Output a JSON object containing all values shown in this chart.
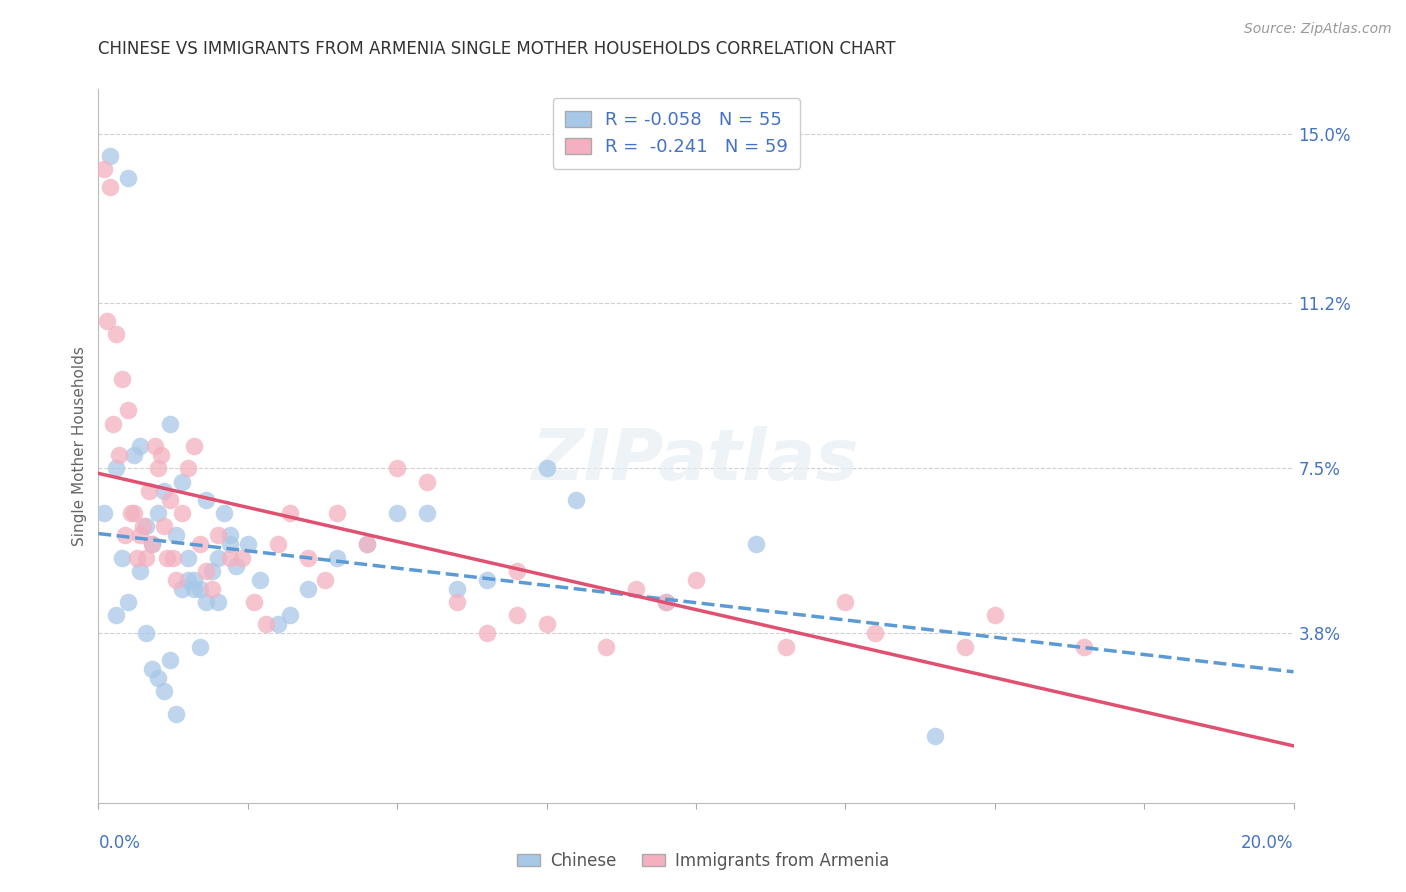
{
  "title": "CHINESE VS IMMIGRANTS FROM ARMENIA SINGLE MOTHER HOUSEHOLDS CORRELATION CHART",
  "source": "Source: ZipAtlas.com",
  "ylabel": "Single Mother Households",
  "xlim": [
    0.0,
    20.0
  ],
  "ylim": [
    0.0,
    16.0
  ],
  "right_yticks": [
    3.8,
    7.5,
    11.2,
    15.0
  ],
  "right_ytick_labels": [
    "3.8%",
    "7.5%",
    "11.2%",
    "15.0%"
  ],
  "chinese_x": [
    0.1,
    0.2,
    0.3,
    0.4,
    0.5,
    0.6,
    0.7,
    0.8,
    0.9,
    1.0,
    1.1,
    1.2,
    1.3,
    1.4,
    1.5,
    1.6,
    1.7,
    1.8,
    1.9,
    2.0,
    2.1,
    2.2,
    2.3,
    2.5,
    2.7,
    3.0,
    3.2,
    3.5,
    4.0,
    4.5,
    5.0,
    5.5,
    6.0,
    6.5,
    7.5,
    8.0,
    9.5,
    11.0,
    14.0,
    0.3,
    0.5,
    0.7,
    0.8,
    0.9,
    1.0,
    1.1,
    1.2,
    1.3,
    1.4,
    1.5,
    1.6,
    1.7,
    1.8,
    2.0,
    2.2
  ],
  "chinese_y": [
    6.5,
    14.5,
    7.5,
    5.5,
    14.0,
    7.8,
    8.0,
    6.2,
    5.8,
    6.5,
    7.0,
    8.5,
    6.0,
    7.2,
    5.5,
    5.0,
    4.8,
    6.8,
    5.2,
    4.5,
    6.5,
    5.8,
    5.3,
    5.8,
    5.0,
    4.0,
    4.2,
    4.8,
    5.5,
    5.8,
    6.5,
    6.5,
    4.8,
    5.0,
    7.5,
    6.8,
    4.5,
    5.8,
    1.5,
    4.2,
    4.5,
    5.2,
    3.8,
    3.0,
    2.8,
    2.5,
    3.2,
    2.0,
    4.8,
    5.0,
    4.8,
    3.5,
    4.5,
    5.5,
    6.0
  ],
  "armenia_x": [
    0.1,
    0.15,
    0.2,
    0.25,
    0.3,
    0.35,
    0.4,
    0.45,
    0.5,
    0.55,
    0.6,
    0.65,
    0.7,
    0.75,
    0.8,
    0.85,
    0.9,
    0.95,
    1.0,
    1.05,
    1.1,
    1.15,
    1.2,
    1.25,
    1.3,
    1.4,
    1.5,
    1.6,
    1.7,
    1.8,
    1.9,
    2.0,
    2.2,
    2.4,
    2.6,
    2.8,
    3.0,
    3.2,
    3.5,
    3.8,
    4.0,
    4.5,
    5.0,
    5.5,
    6.0,
    6.5,
    7.0,
    7.5,
    8.5,
    9.0,
    10.0,
    11.5,
    12.5,
    13.0,
    14.5,
    15.0,
    16.5,
    7.0,
    9.5
  ],
  "armenia_y": [
    14.2,
    10.8,
    13.8,
    8.5,
    10.5,
    7.8,
    9.5,
    6.0,
    8.8,
    6.5,
    6.5,
    5.5,
    6.0,
    6.2,
    5.5,
    7.0,
    5.8,
    8.0,
    7.5,
    7.8,
    6.2,
    5.5,
    6.8,
    5.5,
    5.0,
    6.5,
    7.5,
    8.0,
    5.8,
    5.2,
    4.8,
    6.0,
    5.5,
    5.5,
    4.5,
    4.0,
    5.8,
    6.5,
    5.5,
    5.0,
    6.5,
    5.8,
    7.5,
    7.2,
    4.5,
    3.8,
    4.2,
    4.0,
    3.5,
    4.8,
    5.0,
    3.5,
    4.5,
    3.8,
    3.5,
    4.2,
    3.5,
    5.2,
    4.5
  ],
  "chinese_color": "#a8c8e8",
  "chinese_line_color": "#5b9bd5",
  "armenia_color": "#f4b0c0",
  "armenia_line_color": "#e05070",
  "chinese_label": "Chinese",
  "armenia_label": "Immigrants from Armenia",
  "chinese_R": -0.058,
  "chinese_N": 55,
  "armenia_R": -0.241,
  "armenia_N": 59,
  "background_color": "#ffffff",
  "grid_color": "#d0d0d0",
  "title_color": "#333333",
  "source_color": "#999999",
  "axis_label_color": "#4472c4"
}
